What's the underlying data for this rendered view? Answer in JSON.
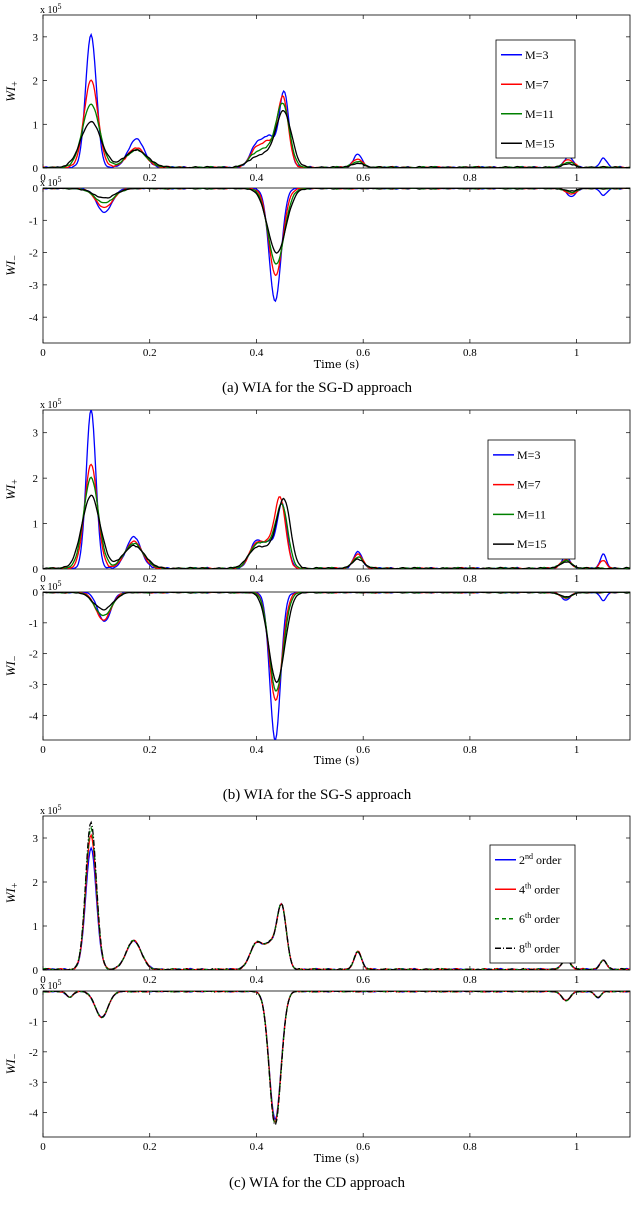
{
  "chart_data": [
    {
      "type": "line",
      "panel": "a",
      "caption": "(a) WIA for the SG-D approach",
      "xlabel": "Time (s)",
      "xlim": [
        0,
        1.1
      ],
      "xticks": [
        "0",
        "0.2",
        "0.4",
        "0.6",
        "0.8",
        "1"
      ],
      "legend_position": "top-right",
      "top": {
        "ylabel_main": "WI",
        "ylabel_sub": "+",
        "exponent": "x 10",
        "exponent_power": "5",
        "ylim": [
          0,
          3.5
        ],
        "yticks": [
          "0",
          "1",
          "2",
          "3"
        ]
      },
      "bottom": {
        "ylabel_main": "WI",
        "ylabel_sub": "−",
        "exponent": "x 10",
        "exponent_power": "5",
        "ylim": [
          -4.8,
          0
        ],
        "yticks": [
          "0",
          "-1",
          "-2",
          "-3",
          "-4"
        ]
      },
      "series": [
        {
          "name": "M=3",
          "legend_main": "M=3",
          "legend_sup": "",
          "legend_tail": "",
          "color": "#0000ff",
          "dash": "",
          "pos_peaks": [
            [
              0.09,
              3.05,
              0.01
            ],
            [
              0.175,
              0.65,
              0.015
            ],
            [
              0.4,
              0.5,
              0.012
            ],
            [
              0.425,
              0.65,
              0.012
            ],
            [
              0.452,
              1.7,
              0.009
            ],
            [
              0.59,
              0.3,
              0.008
            ],
            [
              0.985,
              0.25,
              0.008
            ],
            [
              1.05,
              0.22,
              0.006
            ]
          ],
          "neg_peaks": [
            [
              0.115,
              -0.75,
              0.014
            ],
            [
              0.435,
              -3.5,
              0.011
            ],
            [
              0.99,
              -0.25,
              0.008
            ],
            [
              1.05,
              -0.22,
              0.006
            ]
          ]
        },
        {
          "name": "M=7",
          "legend_main": "M=7",
          "legend_sup": "",
          "legend_tail": "",
          "color": "#ff0000",
          "dash": "",
          "pos_peaks": [
            [
              0.09,
              2.0,
              0.013
            ],
            [
              0.175,
              0.45,
              0.017
            ],
            [
              0.4,
              0.4,
              0.013
            ],
            [
              0.425,
              0.5,
              0.013
            ],
            [
              0.45,
              1.55,
              0.01
            ],
            [
              0.59,
              0.2,
              0.009
            ],
            [
              0.985,
              0.18,
              0.009
            ]
          ],
          "neg_peaks": [
            [
              0.115,
              -0.6,
              0.016
            ],
            [
              0.436,
              -2.7,
              0.013
            ],
            [
              0.99,
              -0.18,
              0.009
            ]
          ]
        },
        {
          "name": "M=11",
          "legend_main": "M=11",
          "legend_sup": "",
          "legend_tail": "",
          "color": "#008000",
          "dash": "",
          "pos_peaks": [
            [
              0.09,
              1.45,
              0.016
            ],
            [
              0.175,
              0.4,
              0.019
            ],
            [
              0.4,
              0.3,
              0.015
            ],
            [
              0.428,
              0.35,
              0.015
            ],
            [
              0.45,
              1.35,
              0.012
            ],
            [
              0.59,
              0.14,
              0.01
            ],
            [
              0.985,
              0.12,
              0.01
            ]
          ],
          "neg_peaks": [
            [
              0.115,
              -0.45,
              0.018
            ],
            [
              0.437,
              -2.35,
              0.015
            ],
            [
              0.99,
              -0.12,
              0.01
            ]
          ]
        },
        {
          "name": "M=15",
          "legend_main": "M=15",
          "legend_sup": "",
          "legend_tail": "",
          "color": "#000000",
          "dash": "",
          "pos_peaks": [
            [
              0.09,
              1.05,
              0.019
            ],
            [
              0.175,
              0.4,
              0.021
            ],
            [
              0.4,
              0.2,
              0.017
            ],
            [
              0.43,
              0.25,
              0.017
            ],
            [
              0.452,
              1.18,
              0.014
            ],
            [
              0.59,
              0.1,
              0.011
            ],
            [
              0.985,
              0.08,
              0.011
            ]
          ],
          "neg_peaks": [
            [
              0.115,
              -0.3,
              0.02
            ],
            [
              0.438,
              -2.0,
              0.017
            ],
            [
              0.99,
              -0.08,
              0.011
            ]
          ]
        }
      ]
    },
    {
      "type": "line",
      "panel": "b",
      "caption": "(b) WIA for the SG-S approach",
      "xlabel": "Time (s)",
      "xlim": [
        0,
        1.1
      ],
      "xticks": [
        "0",
        "0.2",
        "0.4",
        "0.6",
        "0.8",
        "1"
      ],
      "legend_position": "top-right",
      "top": {
        "ylabel_main": "WI",
        "ylabel_sub": "+",
        "exponent": "x 10",
        "exponent_power": "5",
        "ylim": [
          0,
          3.5
        ],
        "yticks": [
          "0",
          "1",
          "2",
          "3"
        ]
      },
      "bottom": {
        "ylabel_main": "WI",
        "ylabel_sub": "−",
        "exponent": "x 10",
        "exponent_power": "5",
        "ylim": [
          -4.8,
          0
        ],
        "yticks": [
          "0",
          "-1",
          "-2",
          "-3",
          "-4"
        ]
      },
      "series": [
        {
          "name": "M=3",
          "legend_main": "M=3",
          "legend_sup": "",
          "legend_tail": "",
          "color": "#0000ff",
          "dash": "",
          "pos_peaks": [
            [
              0.09,
              3.5,
              0.009
            ],
            [
              0.17,
              0.7,
              0.014
            ],
            [
              0.4,
              0.6,
              0.012
            ],
            [
              0.425,
              0.5,
              0.01
            ],
            [
              0.448,
              1.4,
              0.009
            ],
            [
              0.59,
              0.38,
              0.008
            ],
            [
              0.98,
              0.25,
              0.008
            ],
            [
              1.05,
              0.3,
              0.006
            ]
          ],
          "neg_peaks": [
            [
              0.115,
              -0.95,
              0.012
            ],
            [
              0.435,
              -4.8,
              0.01
            ],
            [
              0.98,
              -0.25,
              0.008
            ],
            [
              1.05,
              -0.25,
              0.006
            ]
          ]
        },
        {
          "name": "M=7",
          "legend_main": "M=7",
          "legend_sup": "",
          "legend_tail": "",
          "color": "#ff0000",
          "dash": "",
          "pos_peaks": [
            [
              0.09,
              2.3,
              0.012
            ],
            [
              0.17,
              0.6,
              0.016
            ],
            [
              0.4,
              0.55,
              0.013
            ],
            [
              0.425,
              0.45,
              0.011
            ],
            [
              0.445,
              1.48,
              0.01
            ],
            [
              0.59,
              0.32,
              0.009
            ],
            [
              0.98,
              0.2,
              0.009
            ],
            [
              1.05,
              0.18,
              0.006
            ]
          ],
          "neg_peaks": [
            [
              0.113,
              -0.9,
              0.014
            ],
            [
              0.436,
              -3.5,
              0.012
            ],
            [
              0.98,
              -0.2,
              0.009
            ]
          ]
        },
        {
          "name": "M=11",
          "legend_main": "M=11",
          "legend_sup": "",
          "legend_tail": "",
          "color": "#008000",
          "dash": "",
          "pos_peaks": [
            [
              0.09,
              2.0,
              0.014
            ],
            [
              0.17,
              0.55,
              0.018
            ],
            [
              0.4,
              0.5,
              0.014
            ],
            [
              0.425,
              0.4,
              0.012
            ],
            [
              0.448,
              1.35,
              0.011
            ],
            [
              0.59,
              0.25,
              0.01
            ],
            [
              0.98,
              0.18,
              0.01
            ]
          ],
          "neg_peaks": [
            [
              0.113,
              -0.75,
              0.016
            ],
            [
              0.437,
              -3.2,
              0.013
            ],
            [
              0.98,
              -0.18,
              0.01
            ]
          ]
        },
        {
          "name": "M=15",
          "legend_main": "M=15",
          "legend_sup": "",
          "legend_tail": "",
          "color": "#000000",
          "dash": "",
          "pos_peaks": [
            [
              0.09,
              1.6,
              0.017
            ],
            [
              0.17,
              0.5,
              0.02
            ],
            [
              0.4,
              0.45,
              0.016
            ],
            [
              0.43,
              0.35,
              0.013
            ],
            [
              0.452,
              1.45,
              0.012
            ],
            [
              0.59,
              0.2,
              0.011
            ],
            [
              0.98,
              0.15,
              0.011
            ]
          ],
          "neg_peaks": [
            [
              0.113,
              -0.55,
              0.018
            ],
            [
              0.438,
              -2.9,
              0.015
            ],
            [
              0.98,
              -0.15,
              0.011
            ]
          ]
        }
      ]
    },
    {
      "type": "line",
      "panel": "c",
      "caption": "(c) WIA for the CD approach",
      "xlabel": "Time (s)",
      "xlim": [
        0,
        1.1
      ],
      "xticks": [
        "0",
        "0.2",
        "0.4",
        "0.6",
        "0.8",
        "1"
      ],
      "legend_position": "top-right",
      "top": {
        "ylabel_main": "WI",
        "ylabel_sub": "+",
        "exponent": "x 10",
        "exponent_power": "5",
        "ylim": [
          0,
          3.5
        ],
        "yticks": [
          "0",
          "1",
          "2",
          "3"
        ]
      },
      "bottom": {
        "ylabel_main": "WI",
        "ylabel_sub": "−",
        "exponent": "x 10",
        "exponent_power": "5",
        "ylim": [
          -4.8,
          0
        ],
        "yticks": [
          "0",
          "-1",
          "-2",
          "-3",
          "-4"
        ]
      },
      "series": [
        {
          "name": "2nd order",
          "legend_main": "2",
          "legend_sup": "nd",
          "legend_tail": " order",
          "color": "#0000ff",
          "dash": "",
          "pos_peaks": [
            [
              0.09,
              2.75,
              0.01
            ],
            [
              0.17,
              0.65,
              0.014
            ],
            [
              0.4,
              0.6,
              0.012
            ],
            [
              0.425,
              0.5,
              0.01
            ],
            [
              0.447,
              1.45,
              0.009
            ],
            [
              0.59,
              0.4,
              0.007
            ],
            [
              0.98,
              0.22,
              0.008
            ],
            [
              1.05,
              0.22,
              0.006
            ]
          ],
          "neg_peaks": [
            [
              0.05,
              -0.2,
              0.006
            ],
            [
              0.11,
              -0.85,
              0.012
            ],
            [
              0.435,
              -4.2,
              0.011
            ],
            [
              0.98,
              -0.3,
              0.008
            ],
            [
              1.04,
              -0.2,
              0.006
            ]
          ]
        },
        {
          "name": "4th order",
          "legend_main": "4",
          "legend_sup": "th",
          "legend_tail": " order",
          "color": "#ff0000",
          "dash": "",
          "pos_peaks": [
            [
              0.09,
              3.05,
              0.01
            ],
            [
              0.17,
              0.65,
              0.014
            ],
            [
              0.4,
              0.6,
              0.012
            ],
            [
              0.425,
              0.5,
              0.01
            ],
            [
              0.447,
              1.45,
              0.009
            ],
            [
              0.59,
              0.4,
              0.007
            ],
            [
              0.98,
              0.22,
              0.008
            ],
            [
              1.05,
              0.22,
              0.006
            ]
          ],
          "neg_peaks": [
            [
              0.05,
              -0.2,
              0.006
            ],
            [
              0.11,
              -0.85,
              0.012
            ],
            [
              0.435,
              -4.3,
              0.011
            ],
            [
              0.98,
              -0.3,
              0.008
            ],
            [
              1.04,
              -0.2,
              0.006
            ]
          ]
        },
        {
          "name": "6th order",
          "legend_main": "6",
          "legend_sup": "th",
          "legend_tail": " order",
          "color": "#008000",
          "dash": "4,3",
          "pos_peaks": [
            [
              0.09,
              3.2,
              0.01
            ],
            [
              0.17,
              0.65,
              0.014
            ],
            [
              0.4,
              0.6,
              0.012
            ],
            [
              0.425,
              0.5,
              0.01
            ],
            [
              0.447,
              1.45,
              0.009
            ],
            [
              0.59,
              0.4,
              0.007
            ],
            [
              0.98,
              0.22,
              0.008
            ],
            [
              1.05,
              0.22,
              0.006
            ]
          ],
          "neg_peaks": [
            [
              0.05,
              -0.2,
              0.006
            ],
            [
              0.11,
              -0.85,
              0.012
            ],
            [
              0.435,
              -4.35,
              0.011
            ],
            [
              0.98,
              -0.3,
              0.008
            ],
            [
              1.04,
              -0.2,
              0.006
            ]
          ]
        },
        {
          "name": "8th order",
          "legend_main": "8",
          "legend_sup": "th",
          "legend_tail": " order",
          "color": "#000000",
          "dash": "6,2,1,2",
          "pos_peaks": [
            [
              0.09,
              3.35,
              0.01
            ],
            [
              0.17,
              0.65,
              0.014
            ],
            [
              0.4,
              0.6,
              0.012
            ],
            [
              0.425,
              0.5,
              0.01
            ],
            [
              0.447,
              1.45,
              0.009
            ],
            [
              0.59,
              0.4,
              0.007
            ],
            [
              0.98,
              0.22,
              0.008
            ],
            [
              1.05,
              0.22,
              0.006
            ]
          ],
          "neg_peaks": [
            [
              0.05,
              -0.2,
              0.006
            ],
            [
              0.11,
              -0.85,
              0.012
            ],
            [
              0.435,
              -4.4,
              0.011
            ],
            [
              0.98,
              -0.3,
              0.008
            ],
            [
              1.04,
              -0.2,
              0.006
            ]
          ]
        }
      ]
    }
  ]
}
